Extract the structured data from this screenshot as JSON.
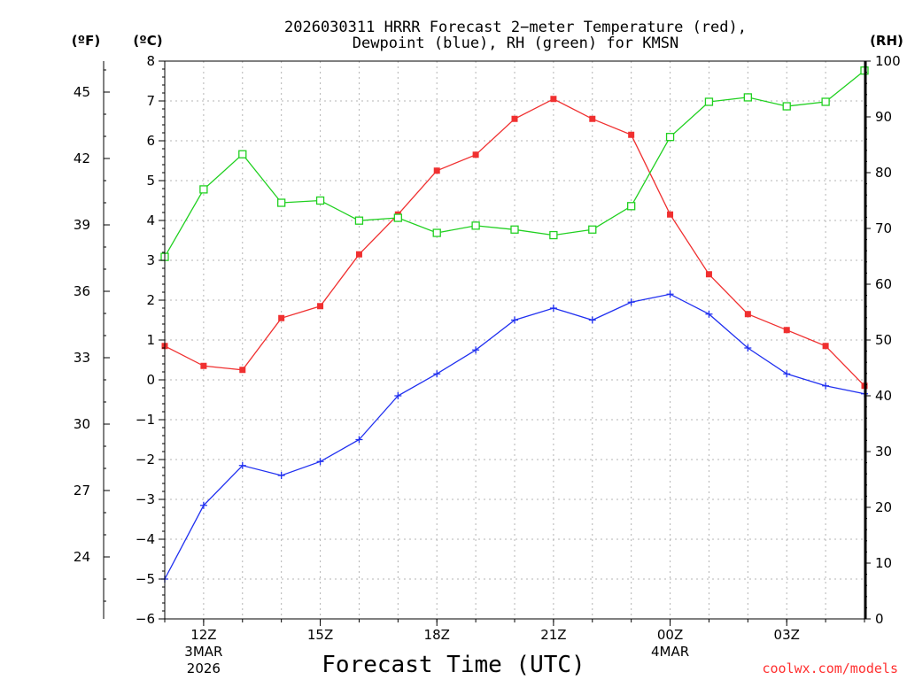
{
  "chart_data": {
    "type": "line",
    "title": "2026030311 HRRR Forecast 2−meter Temperature (red),",
    "subtitle": "Dewpoint (blue), RH (green) for KMSN",
    "xlabel": "Forecast Time (UTC)",
    "credit": "coolwx.com/models",
    "left_axis_label": "(ºC)",
    "far_left_axis_label": "(ºF)",
    "right_axis_label": "(RH)",
    "x": [
      11,
      12,
      13,
      14,
      15,
      16,
      17,
      18,
      19,
      20,
      21,
      22,
      23,
      24,
      25,
      26,
      27,
      28,
      29
    ],
    "xlim": [
      11,
      29
    ],
    "ylim_c": [
      -6,
      8
    ],
    "ylim_rh": [
      0,
      100
    ],
    "x_ticks": [
      {
        "x": 12,
        "label": "12Z",
        "sub1": "3MAR",
        "sub2": "2026"
      },
      {
        "x": 15,
        "label": "15Z",
        "sub1": "",
        "sub2": ""
      },
      {
        "x": 18,
        "label": "18Z",
        "sub1": "",
        "sub2": ""
      },
      {
        "x": 21,
        "label": "21Z",
        "sub1": "",
        "sub2": ""
      },
      {
        "x": 24,
        "label": "00Z",
        "sub1": "4MAR",
        "sub2": ""
      },
      {
        "x": 27,
        "label": "03Z",
        "sub1": "",
        "sub2": ""
      }
    ],
    "y_ticks_c": [
      "−6",
      "−5",
      "−4",
      "−3",
      "−2",
      "−1",
      "0",
      "1",
      "2",
      "3",
      "4",
      "5",
      "6",
      "7",
      "8"
    ],
    "y_ticks_f": [
      "24",
      "27",
      "30",
      "33",
      "36",
      "39",
      "42",
      "45"
    ],
    "y_ticks_rh": [
      "0",
      "10",
      "20",
      "30",
      "40",
      "50",
      "60",
      "70",
      "80",
      "90",
      "100"
    ],
    "grid": true,
    "series": [
      {
        "name": "Temperature",
        "axis": "c",
        "color": "#f03030",
        "marker": "filled-square",
        "values": [
          0.85,
          0.35,
          0.25,
          1.55,
          1.85,
          3.15,
          4.15,
          5.25,
          5.65,
          6.55,
          7.05,
          6.55,
          6.15,
          4.15,
          2.65,
          1.65,
          1.25,
          0.85,
          -0.15
        ]
      },
      {
        "name": "Dewpoint",
        "axis": "c",
        "color": "#2030f0",
        "marker": "plus",
        "values": [
          -5.0,
          -3.15,
          -2.15,
          -2.4,
          -2.05,
          -1.5,
          -0.4,
          0.15,
          0.75,
          1.5,
          1.8,
          1.5,
          1.95,
          2.15,
          1.65,
          0.8,
          0.15,
          -0.15,
          -0.35
        ]
      },
      {
        "name": "RH",
        "axis": "rh",
        "color": "#20d020",
        "marker": "open-square",
        "values": [
          64.9,
          77.0,
          83.3,
          74.6,
          75.0,
          71.4,
          71.9,
          69.2,
          70.5,
          69.8,
          68.8,
          69.8,
          74.0,
          86.4,
          92.7,
          93.5,
          91.9,
          92.7,
          98.3
        ]
      }
    ]
  }
}
